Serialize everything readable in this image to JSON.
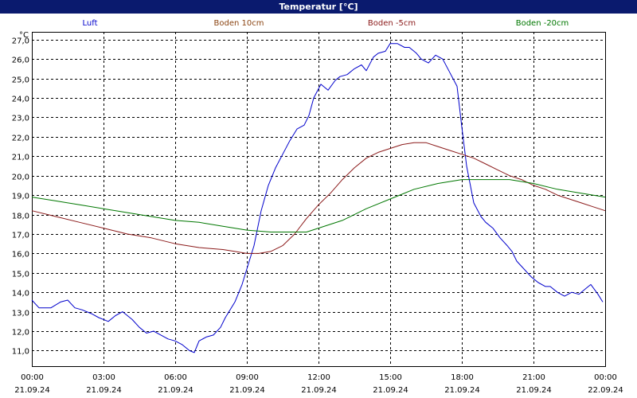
{
  "header": {
    "title": "Temperatur [°C]"
  },
  "chart_data": {
    "type": "line",
    "title": "Temperatur [°C]",
    "ylabel": "°C",
    "xlabel": "",
    "ylim": [
      10.2,
      27.4
    ],
    "xlim": [
      0,
      24
    ],
    "grid": true,
    "legend": "top",
    "yticks": [
      "11,0",
      "12,0",
      "13,0",
      "14,0",
      "15,0",
      "16,0",
      "17,0",
      "18,0",
      "19,0",
      "20,0",
      "21,0",
      "22,0",
      "23,0",
      "24,0",
      "25,0",
      "26,0",
      "27,0"
    ],
    "xticks": [
      {
        "time": "00:00",
        "date": "21.09.24"
      },
      {
        "time": "03:00",
        "date": "21.09.24"
      },
      {
        "time": "06:00",
        "date": "21.09.24"
      },
      {
        "time": "09:00",
        "date": "21.09.24"
      },
      {
        "time": "12:00",
        "date": "21.09.24"
      },
      {
        "time": "15:00",
        "date": "21.09.24"
      },
      {
        "time": "18:00",
        "date": "21.09.24"
      },
      {
        "time": "21:00",
        "date": "21.09.24"
      },
      {
        "time": "00:00",
        "date": "22.09.24"
      }
    ],
    "series": [
      {
        "name": "Luft",
        "color": "#0000cc",
        "x": [
          0,
          0.3,
          0.8,
          1.2,
          1.5,
          1.8,
          2.1,
          2.5,
          2.8,
          3.2,
          3.5,
          3.8,
          4.2,
          4.5,
          4.8,
          5.1,
          5.4,
          5.7,
          6.0,
          6.3,
          6.6,
          6.8,
          7.0,
          7.3,
          7.6,
          7.9,
          8.1,
          8.5,
          8.8,
          9.0,
          9.3,
          9.6,
          9.9,
          10.2,
          10.5,
          10.8,
          11.1,
          11.4,
          11.6,
          11.8,
          12.1,
          12.4,
          12.7,
          12.9,
          13.2,
          13.5,
          13.8,
          14.0,
          14.3,
          14.5,
          14.8,
          15.0,
          15.3,
          15.6,
          15.8,
          16.1,
          16.3,
          16.6,
          16.9,
          17.2,
          17.5,
          17.8,
          18.0,
          18.2,
          18.5,
          18.8,
          19.0,
          19.3,
          19.6,
          19.9,
          20.1,
          20.3,
          20.6,
          20.9,
          21.2,
          21.5,
          21.7,
          22.0,
          22.3,
          22.6,
          22.9,
          23.2,
          23.4,
          23.7,
          23.9
        ],
        "values": [
          13.6,
          13.2,
          13.2,
          13.5,
          13.6,
          13.2,
          13.1,
          12.9,
          12.7,
          12.5,
          12.8,
          13.0,
          12.6,
          12.2,
          11.9,
          12.0,
          11.8,
          11.6,
          11.5,
          11.3,
          11.0,
          10.9,
          11.5,
          11.7,
          11.8,
          12.2,
          12.7,
          13.5,
          14.4,
          15.2,
          16.4,
          18.2,
          19.5,
          20.4,
          21.1,
          21.8,
          22.4,
          22.6,
          23.1,
          24.0,
          24.7,
          24.4,
          24.9,
          25.1,
          25.2,
          25.5,
          25.7,
          25.4,
          26.1,
          26.3,
          26.4,
          26.8,
          26.8,
          26.6,
          26.6,
          26.3,
          26.0,
          25.8,
          26.2,
          26.0,
          25.3,
          24.6,
          22.5,
          20.5,
          18.6,
          17.9,
          17.6,
          17.3,
          16.8,
          16.4,
          16.1,
          15.6,
          15.2,
          14.8,
          14.5,
          14.3,
          14.3,
          14.0,
          13.8,
          14.0,
          13.9,
          14.2,
          14.4,
          13.9,
          13.5
        ]
      },
      {
        "name": "Boden 10cm",
        "color": "#8b4513",
        "x": [],
        "values": []
      },
      {
        "name": "Boden -5cm",
        "color": "#8b1a1a",
        "x": [
          0,
          1,
          2,
          3,
          4,
          5,
          6,
          7,
          8,
          8.5,
          9,
          9.5,
          10,
          10.5,
          11,
          11.5,
          12,
          12.5,
          13,
          13.5,
          14,
          14.5,
          15,
          15.5,
          16,
          16.5,
          17,
          17.5,
          18,
          18.5,
          19,
          19.5,
          20,
          20.5,
          21,
          21.5,
          22,
          22.5,
          23,
          23.5,
          24
        ],
        "values": [
          18.2,
          17.9,
          17.6,
          17.3,
          17.0,
          16.8,
          16.5,
          16.3,
          16.2,
          16.1,
          16.0,
          16.0,
          16.1,
          16.4,
          17.0,
          17.8,
          18.5,
          19.1,
          19.8,
          20.4,
          20.9,
          21.2,
          21.4,
          21.6,
          21.7,
          21.7,
          21.5,
          21.3,
          21.1,
          20.9,
          20.6,
          20.3,
          20.0,
          19.8,
          19.5,
          19.3,
          19.0,
          18.8,
          18.6,
          18.4,
          18.2
        ]
      },
      {
        "name": "Boden -20cm",
        "color": "#007700",
        "x": [
          0,
          1,
          2,
          3,
          4,
          5,
          6,
          7,
          8,
          9,
          10,
          11,
          11.5,
          12,
          13,
          14,
          15,
          16,
          17,
          18,
          19,
          20,
          21,
          22,
          23,
          24
        ],
        "values": [
          18.9,
          18.7,
          18.5,
          18.3,
          18.1,
          17.9,
          17.7,
          17.6,
          17.4,
          17.2,
          17.1,
          17.1,
          17.1,
          17.3,
          17.7,
          18.3,
          18.8,
          19.3,
          19.6,
          19.8,
          19.8,
          19.8,
          19.6,
          19.3,
          19.1,
          18.9
        ]
      }
    ]
  }
}
